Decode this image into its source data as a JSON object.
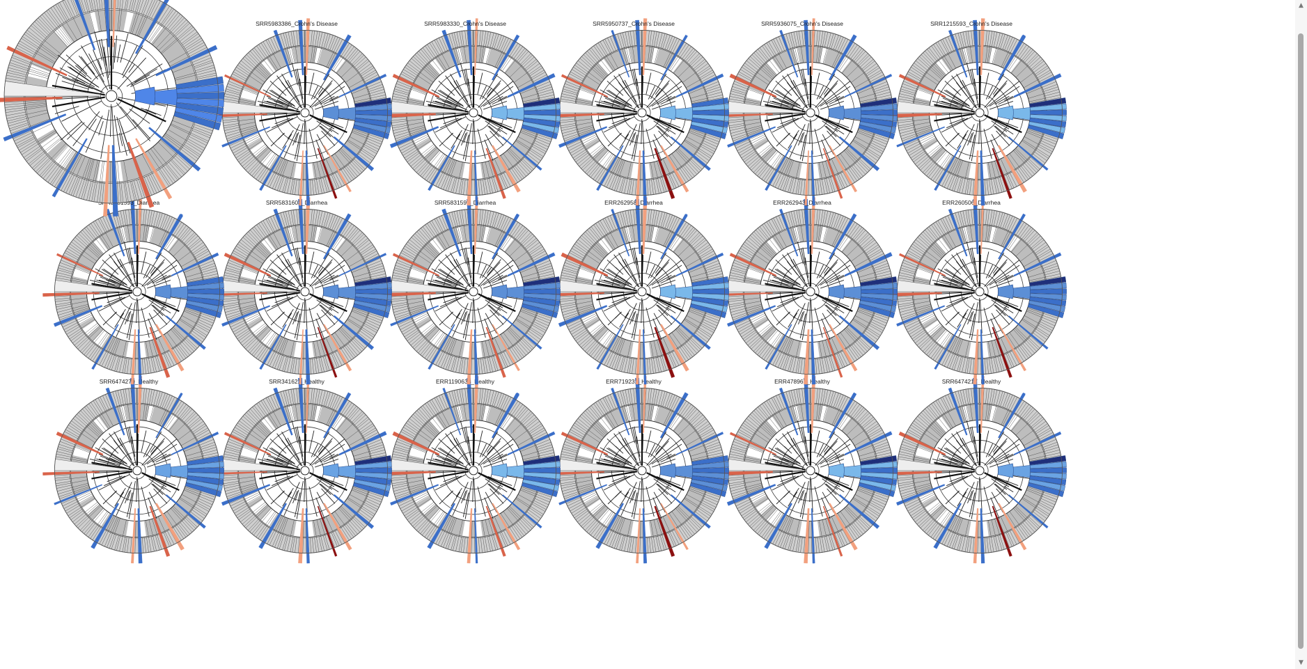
{
  "panels": [
    {
      "label": "",
      "disease": "overview",
      "tint": "#4f86e8"
    },
    {
      "label": "SRR5983386_Crohn's Disease",
      "disease": "crohns",
      "tint": "#5c8fd6"
    },
    {
      "label": "SRR5983330_Crohn's Disease",
      "disease": "crohns",
      "tint": "#7ab8ea"
    },
    {
      "label": "SRR5950737_Crohn's Disease",
      "disease": "crohns",
      "tint": "#7ab8ea"
    },
    {
      "label": "SRR5936075_Crohn's Disease",
      "disease": "crohns",
      "tint": "#5c8fd6"
    },
    {
      "label": "SRR1215593_Crohn's Disease",
      "disease": "crohns",
      "tint": "#7ab8ea"
    },
    {
      "label": "SRR5831593_Diarrhea",
      "disease": "diarrhea",
      "tint": "#5c8fd6"
    },
    {
      "label": "SRR5831603_Diarrhea",
      "disease": "diarrhea",
      "tint": "#5c8fd6"
    },
    {
      "label": "SRR5831595_Diarrhea",
      "disease": "diarrhea",
      "tint": "#5c8fd6"
    },
    {
      "label": "ERR262958_Diarrhea",
      "disease": "diarrhea",
      "tint": "#7ab8ea"
    },
    {
      "label": "ERR262943_Diarrhea",
      "disease": "diarrhea",
      "tint": "#5c8fd6"
    },
    {
      "label": "ERR260506_Diarrhea",
      "disease": "diarrhea",
      "tint": "#5c8fd6"
    },
    {
      "label": "SRR6474279_Healthy",
      "disease": "healthy",
      "tint": "#6aa3e3"
    },
    {
      "label": "SRR341621_Healthy",
      "disease": "healthy",
      "tint": "#6aa3e3"
    },
    {
      "label": "ERR1190638_Healthy",
      "disease": "healthy",
      "tint": "#7ab8ea"
    },
    {
      "label": "ERR719231_Healthy",
      "disease": "healthy",
      "tint": "#5c8fd6"
    },
    {
      "label": "ERR478967_Healthy",
      "disease": "healthy",
      "tint": "#7ab8ea"
    },
    {
      "label": "SRR6474217_Healthy",
      "disease": "healthy",
      "tint": "#6aa3e3"
    }
  ],
  "colors": {
    "ring_fill": "#c4c4c4",
    "ring_line": "#555555",
    "branch": "#222222",
    "blue_dark": "#1f2f7a",
    "blue_mid": "#3b6fc9",
    "red_dark": "#8c1010",
    "red_mid": "#d9634a",
    "salmon": "#f2a07e"
  },
  "scrollbar": {
    "up_icon": "▲",
    "down_icon": "▼"
  }
}
